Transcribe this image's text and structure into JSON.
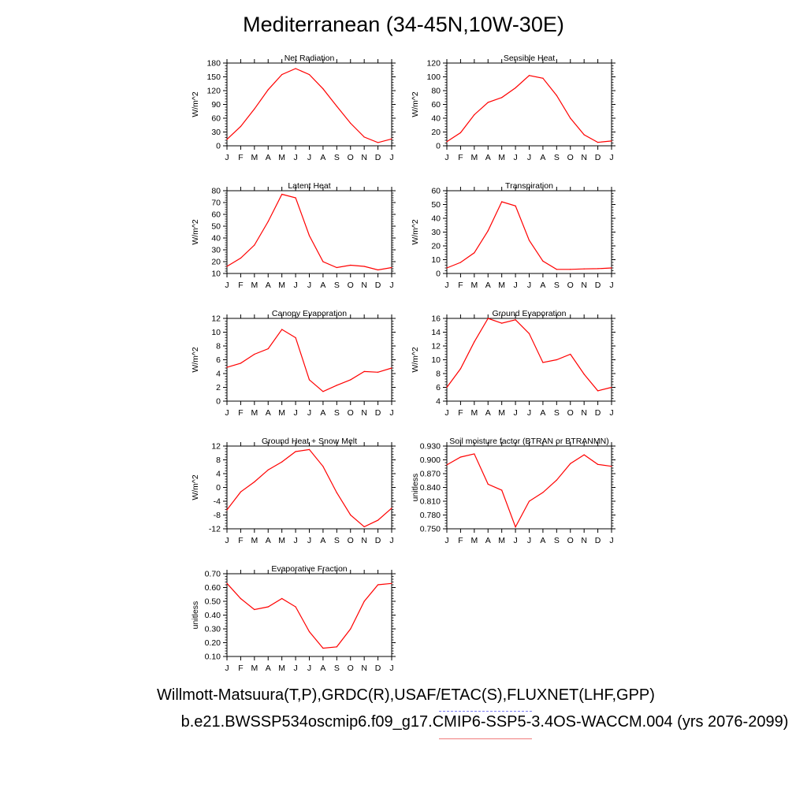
{
  "title": "Mediterranean (34-45N,10W-30E)",
  "footer": {
    "observations": "Willmott-Matsuura(T,P),GRDC(R),USAF/ETAC(S),FLUXNET(LHF,GPP)",
    "case": "b.e21.BWSSP534oscmip6.f09_g17.CMIP6-SSP5-3.4OS-WACCM.004 (yrs 2076-2099)"
  },
  "colors": {
    "model_line": "#ff0000",
    "obs_legend": "#7b7bf0",
    "model_legend": "#f07b7b"
  },
  "chart_data": [
    {
      "type": "line",
      "title": "Net Radiation",
      "ylabel": "W/m^2",
      "categories": [
        "J",
        "F",
        "M",
        "A",
        "M",
        "J",
        "J",
        "A",
        "S",
        "O",
        "N",
        "D",
        "J"
      ],
      "ylim": [
        0,
        180
      ],
      "yticks": [
        "0",
        "30",
        "60",
        "90",
        "120",
        "150",
        "180"
      ],
      "values": [
        14,
        42,
        80,
        122,
        155,
        168,
        155,
        124,
        86,
        49,
        19,
        7,
        15
      ]
    },
    {
      "type": "line",
      "title": "Sensible Heat",
      "ylabel": "W/m^2",
      "categories": [
        "J",
        "F",
        "M",
        "A",
        "M",
        "J",
        "J",
        "A",
        "S",
        "O",
        "N",
        "D",
        "J"
      ],
      "ylim": [
        0,
        120
      ],
      "yticks": [
        "0",
        "20",
        "40",
        "60",
        "80",
        "100",
        "120"
      ],
      "values": [
        6,
        19,
        45,
        63,
        70,
        84,
        102,
        98,
        73,
        40,
        16,
        5,
        7
      ]
    },
    {
      "type": "line",
      "title": "Latent Heat",
      "ylabel": "W/m^2",
      "categories": [
        "J",
        "F",
        "M",
        "A",
        "M",
        "J",
        "J",
        "A",
        "S",
        "O",
        "N",
        "D",
        "J"
      ],
      "ylim": [
        10,
        80
      ],
      "yticks": [
        "10",
        "20",
        "30",
        "40",
        "50",
        "60",
        "70",
        "80"
      ],
      "values": [
        16,
        23,
        34,
        54,
        77,
        74,
        42,
        20,
        15,
        17,
        16,
        13,
        15
      ]
    },
    {
      "type": "line",
      "title": "Transpiration",
      "ylabel": "W/m^2",
      "categories": [
        "J",
        "F",
        "M",
        "A",
        "M",
        "J",
        "J",
        "A",
        "S",
        "O",
        "N",
        "D",
        "J"
      ],
      "ylim": [
        0,
        60
      ],
      "yticks": [
        "0",
        "10",
        "20",
        "30",
        "40",
        "50",
        "60"
      ],
      "values": [
        4,
        8,
        15,
        31,
        52,
        49,
        24,
        9,
        3,
        3,
        3.3,
        3.5,
        4
      ]
    },
    {
      "type": "line",
      "title": "Canopy Evaporation",
      "ylabel": "W/m^2",
      "categories": [
        "J",
        "F",
        "M",
        "A",
        "M",
        "J",
        "J",
        "A",
        "S",
        "O",
        "N",
        "D",
        "J"
      ],
      "ylim": [
        0,
        12
      ],
      "yticks": [
        "0",
        "2",
        "4",
        "6",
        "8",
        "10",
        "12"
      ],
      "values": [
        4.9,
        5.5,
        6.8,
        7.6,
        10.4,
        9.2,
        3.1,
        1.4,
        2.3,
        3.1,
        4.3,
        4.2,
        4.8
      ]
    },
    {
      "type": "line",
      "title": "Ground Evaporation",
      "ylabel": "W/m^2",
      "categories": [
        "J",
        "F",
        "M",
        "A",
        "M",
        "J",
        "J",
        "A",
        "S",
        "O",
        "N",
        "D",
        "J"
      ],
      "ylim": [
        4,
        16
      ],
      "yticks": [
        "4",
        "6",
        "8",
        "10",
        "12",
        "14",
        "16"
      ],
      "values": [
        6,
        8.7,
        12.6,
        16,
        15.3,
        15.8,
        13.8,
        9.6,
        10,
        10.8,
        7.9,
        5.5,
        6
      ]
    },
    {
      "type": "line",
      "title": "Ground Heat + Snow Melt",
      "ylabel": "W/m^2",
      "categories": [
        "J",
        "F",
        "M",
        "A",
        "M",
        "J",
        "J",
        "A",
        "S",
        "O",
        "N",
        "D",
        "J"
      ],
      "ylim": [
        -12,
        12
      ],
      "yticks": [
        "-12",
        "-8",
        "-4",
        "0",
        "4",
        "8",
        "12"
      ],
      "values": [
        -6.5,
        -1.3,
        1.6,
        5.1,
        7.4,
        10.4,
        11,
        6.1,
        -1.5,
        -8,
        -11.4,
        -9.5,
        -6
      ]
    },
    {
      "type": "line",
      "title": "Soil moisture factor (BTRAN or BTRANMN)",
      "ylabel": "unitless",
      "categories": [
        "J",
        "F",
        "M",
        "A",
        "M",
        "J",
        "J",
        "A",
        "S",
        "O",
        "N",
        "D",
        "J"
      ],
      "ylim": [
        0.75,
        0.93
      ],
      "yticks": [
        "0.750",
        "0.780",
        "0.810",
        "0.840",
        "0.870",
        "0.900",
        "0.930"
      ],
      "values": [
        0.889,
        0.906,
        0.913,
        0.847,
        0.834,
        0.754,
        0.81,
        0.829,
        0.856,
        0.892,
        0.911,
        0.89,
        0.886
      ]
    },
    {
      "type": "line",
      "title": "Evaporative Fraction",
      "ylabel": "unitless",
      "categories": [
        "J",
        "F",
        "M",
        "A",
        "M",
        "J",
        "J",
        "A",
        "S",
        "O",
        "N",
        "D",
        "J"
      ],
      "ylim": [
        0.1,
        0.7
      ],
      "yticks": [
        "0.10",
        "0.20",
        "0.30",
        "0.40",
        "0.50",
        "0.60",
        "0.70"
      ],
      "values": [
        0.63,
        0.52,
        0.44,
        0.46,
        0.52,
        0.46,
        0.28,
        0.16,
        0.17,
        0.3,
        0.5,
        0.62,
        0.63
      ]
    }
  ]
}
